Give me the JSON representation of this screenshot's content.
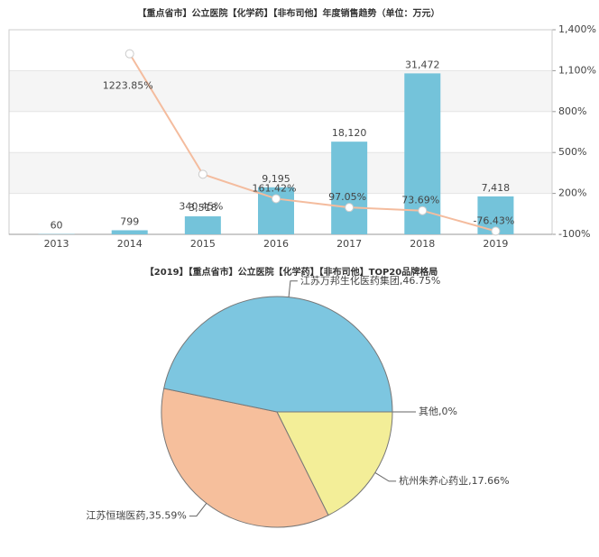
{
  "chart_data": [
    {
      "type": "bar",
      "title": "【重点省市】公立医院【化学药】【非布司他】年度销售趋势（单位：万元）",
      "categories": [
        "2013",
        "2014",
        "2015",
        "2016",
        "2017",
        "2018",
        "2019"
      ],
      "series": [
        {
          "type": "bar",
          "color": "#74c3da",
          "values": [
            60,
            799,
            3518,
            9195,
            18120,
            31472,
            7418
          ],
          "value_labels": [
            "60",
            "799",
            "3,518",
            "9,195",
            "18,120",
            "31,472",
            "7,418"
          ]
        },
        {
          "type": "line",
          "axis": "y2",
          "color": "#f4bc9e",
          "values": [
            null,
            1223.85,
            340.45,
            161.42,
            97.05,
            73.69,
            -76.43
          ],
          "value_labels": [
            null,
            "1223.85%",
            "340.45%",
            "161.42%",
            "97.05%",
            "73.69%",
            "-76.43%"
          ]
        }
      ],
      "ylim": [
        0,
        40000
      ],
      "y2lim": [
        -100,
        1400
      ],
      "y2ticks": [
        {
          "value": -100,
          "label": "-100%"
        },
        {
          "value": 200,
          "label": "200%"
        },
        {
          "value": 500,
          "label": "500%"
        },
        {
          "value": 800,
          "label": "800%"
        },
        {
          "value": 1100,
          "label": "1,100%"
        },
        {
          "value": 1400,
          "label": "1,400%"
        }
      ],
      "grid": true
    },
    {
      "type": "pie",
      "title": "【2019】【重点省市】公立医院【化学药】【非布司他】TOP20品牌格局",
      "values": [
        0,
        17.66,
        35.59,
        46.75
      ],
      "value_labels": [
        "其他,0%",
        "杭州朱养心药业,17.66%",
        "江苏恒瑞医药,35.59%",
        "江苏万邦生化医药集团,46.75%"
      ],
      "colors": [
        "#cccccc",
        "#f3ee98",
        "#f6bf9c",
        "#7dc6e0"
      ]
    }
  ]
}
